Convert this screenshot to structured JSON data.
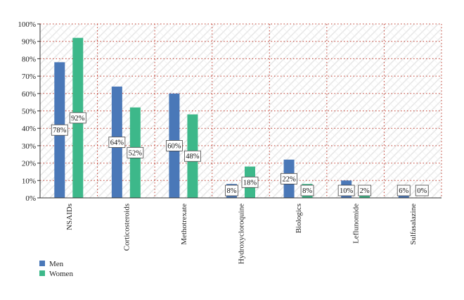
{
  "chart_data": {
    "type": "bar",
    "categories": [
      "NSAIDs",
      "Corticosteroids",
      "Methotrexate",
      "Hydroxycloroquine",
      "Biologics",
      "Leflunomide",
      "Sulfasalazine"
    ],
    "series": [
      {
        "name": "Men",
        "values": [
          78,
          64,
          60,
          8,
          22,
          10,
          6
        ],
        "labels": [
          "78%",
          "64%",
          "60%",
          "8%",
          "22%",
          "10%",
          "6%"
        ]
      },
      {
        "name": "Women",
        "values": [
          92,
          52,
          48,
          18,
          8,
          2,
          0
        ],
        "labels": [
          "92%",
          "52%",
          "48%",
          "18%",
          "8%",
          "2%",
          "0%"
        ]
      }
    ],
    "ylim": [
      0,
      100
    ],
    "yticks": [
      "0%",
      "10%",
      "20%",
      "30%",
      "40%",
      "50%",
      "60%",
      "70%",
      "80%",
      "90%",
      "100%"
    ],
    "grid": true,
    "legend_position": "bottom-left",
    "colors": {
      "Men": "#4a78b8",
      "Women": "#3db88a",
      "grid": "#c0392b",
      "hatch": "#e3e3e3"
    }
  }
}
